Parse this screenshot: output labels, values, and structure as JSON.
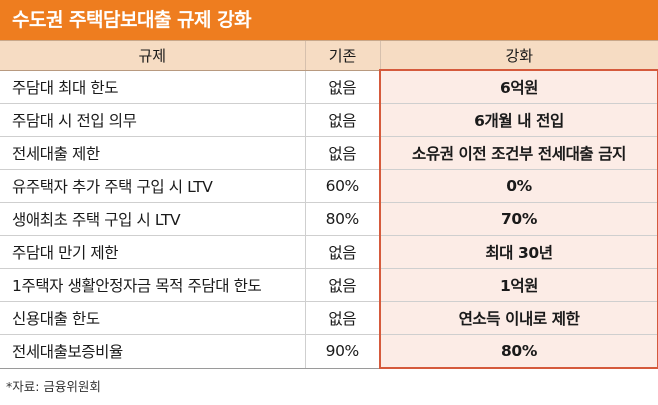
{
  "title": "수도권 주택담보대출 규제 강화",
  "headers": {
    "item": "규제",
    "before": "기존",
    "after": "강화"
  },
  "rows": [
    {
      "item": "주담대 최대 한도",
      "before": "없음",
      "after": "6억원"
    },
    {
      "item": "주담대 시 전입 의무",
      "before": "없음",
      "after": "6개월 내 전입"
    },
    {
      "item": "전세대출 제한",
      "before": "없음",
      "after": "소유권 이전 조건부 전세대출 금지"
    },
    {
      "item": "유주택자 추가 주택 구입 시 LTV",
      "before": "60%",
      "after": "0%"
    },
    {
      "item": "생애최초 주택 구입 시 LTV",
      "before": "80%",
      "after": "70%"
    },
    {
      "item": "주담대 만기 제한",
      "before": "없음",
      "after": "최대 30년"
    },
    {
      "item": "1주택자 생활안정자금 목적 주담대 한도",
      "before": "없음",
      "after": "1억원"
    },
    {
      "item": "신용대출 한도",
      "before": "없음",
      "after": "연소득 이내로 제한"
    },
    {
      "item": "전세대출보증비율",
      "before": "90%",
      "after": "80%"
    }
  ],
  "source": "*자료: 금융위원회",
  "colors": {
    "title_bg": "#ee7d1f",
    "header_bg": "#f6dcc3",
    "highlight_border": "#d55a3c",
    "highlight_bg": "#fcece6"
  }
}
